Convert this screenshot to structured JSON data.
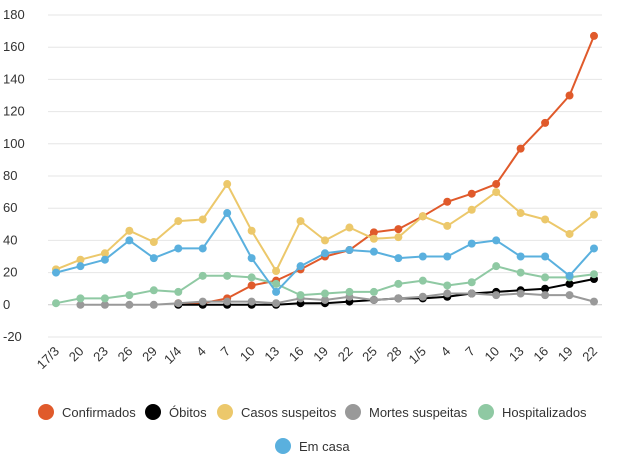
{
  "chart_data": {
    "type": "line",
    "title": "",
    "xlabel": "",
    "ylabel": "",
    "ylim": [
      -20,
      180
    ],
    "yticks": [
      -20,
      0,
      20,
      40,
      60,
      80,
      100,
      120,
      140,
      160,
      180
    ],
    "grid": true,
    "legend_position": "bottom",
    "x": [
      "17/3",
      "20",
      "23",
      "26",
      "29",
      "1/4",
      "4",
      "7",
      "10",
      "13",
      "16",
      "19",
      "22",
      "25",
      "28",
      "1/5",
      "4",
      "7",
      "10",
      "13",
      "16",
      "19",
      "22"
    ],
    "series": [
      {
        "name": "Confirmados",
        "color": "#e05a2b",
        "values": [
          null,
          null,
          null,
          null,
          null,
          1,
          1,
          4,
          12,
          15,
          22,
          30,
          34,
          45,
          47,
          55,
          64,
          69,
          75,
          97,
          113,
          130,
          167
        ]
      },
      {
        "name": "Óbitos",
        "color": "#000000",
        "values": [
          null,
          null,
          null,
          null,
          null,
          0,
          0,
          0,
          0,
          0,
          1,
          1,
          2,
          3,
          4,
          4,
          5,
          7,
          8,
          9,
          10,
          13,
          16
        ]
      },
      {
        "name": "Casos suspeitos",
        "color": "#ecc86b",
        "values": [
          22,
          28,
          32,
          46,
          39,
          52,
          53,
          75,
          46,
          21,
          52,
          40,
          48,
          41,
          42,
          55,
          49,
          59,
          70,
          57,
          53,
          44,
          56
        ]
      },
      {
        "name": "Mortes suspeitas",
        "color": "#999999",
        "values": [
          null,
          0,
          0,
          0,
          0,
          1,
          2,
          2,
          2,
          1,
          4,
          3,
          5,
          3,
          4,
          5,
          7,
          7,
          6,
          7,
          6,
          6,
          2
        ]
      },
      {
        "name": "Hospitalizados",
        "color": "#8fc9a3",
        "values": [
          1,
          4,
          4,
          6,
          9,
          8,
          18,
          18,
          17,
          13,
          6,
          7,
          8,
          8,
          13,
          15,
          12,
          14,
          24,
          20,
          17,
          17,
          19
        ]
      },
      {
        "name": "Em casa",
        "color": "#5ab0de",
        "values": [
          20,
          24,
          28,
          40,
          29,
          35,
          35,
          57,
          29,
          8,
          24,
          32,
          34,
          33,
          29,
          30,
          30,
          38,
          40,
          30,
          30,
          18,
          35
        ]
      }
    ]
  }
}
